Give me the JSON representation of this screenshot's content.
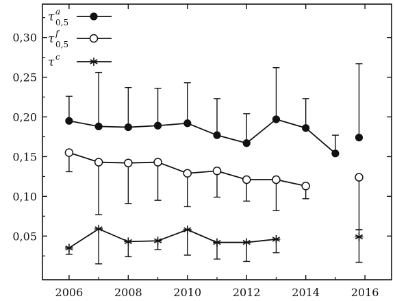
{
  "chart_data": {
    "type": "line",
    "title": "",
    "xlabel": "",
    "ylabel": "",
    "xlim": [
      2005.1,
      2016.9
    ],
    "ylim": [
      -0.005,
      0.342
    ],
    "x_ticks": [
      2006,
      2008,
      2010,
      2012,
      2014,
      2016
    ],
    "x_tick_labels": [
      "2006",
      "2008",
      "2010",
      "2012",
      "2014",
      "2016"
    ],
    "y_ticks": [
      0.05,
      0.1,
      0.15,
      0.2,
      0.25,
      0.3
    ],
    "y_tick_labels": [
      "0,05",
      "0,10",
      "0,15",
      "0,20",
      "0,25",
      "0,30"
    ],
    "grid": false,
    "legend_position": "top-left",
    "series": [
      {
        "name": "τ^a_0,5",
        "legend": {
          "base": "τ",
          "sup": "a",
          "sub": "0,5"
        },
        "marker": "filled-circle",
        "error_direction": "up",
        "segments": [
          [
            {
              "x": 2006,
              "y": 0.195,
              "err": 0.226
            },
            {
              "x": 2007,
              "y": 0.188,
              "err": 0.256
            },
            {
              "x": 2008,
              "y": 0.187,
              "err": 0.237
            },
            {
              "x": 2009,
              "y": 0.189,
              "err": 0.236
            },
            {
              "x": 2010,
              "y": 0.192,
              "err": 0.243
            },
            {
              "x": 2011,
              "y": 0.177,
              "err": 0.223
            },
            {
              "x": 2012,
              "y": 0.167,
              "err": 0.204
            },
            {
              "x": 2013,
              "y": 0.197,
              "err": 0.262
            },
            {
              "x": 2014,
              "y": 0.186,
              "err": 0.223
            },
            {
              "x": 2015,
              "y": 0.154,
              "err": 0.177
            }
          ],
          [
            {
              "x": 2015.8,
              "y": 0.174,
              "err": 0.267
            }
          ]
        ]
      },
      {
        "name": "τ^f_0,5",
        "legend": {
          "base": "τ",
          "sup": "f",
          "sub": "0,5"
        },
        "marker": "open-circle",
        "error_direction": "down",
        "segments": [
          [
            {
              "x": 2006,
              "y": 0.155,
              "err": 0.131
            },
            {
              "x": 2007,
              "y": 0.143,
              "err": 0.077
            },
            {
              "x": 2008,
              "y": 0.142,
              "err": 0.091
            },
            {
              "x": 2009,
              "y": 0.143,
              "err": 0.095
            },
            {
              "x": 2010,
              "y": 0.129,
              "err": 0.087
            },
            {
              "x": 2011,
              "y": 0.132,
              "err": 0.099
            },
            {
              "x": 2012,
              "y": 0.121,
              "err": 0.094
            },
            {
              "x": 2013,
              "y": 0.121,
              "err": 0.082
            },
            {
              "x": 2014,
              "y": 0.113,
              "err": 0.097
            }
          ],
          [
            {
              "x": 2015.8,
              "y": 0.124,
              "err": 0.058
            }
          ]
        ]
      },
      {
        "name": "τ^c",
        "legend": {
          "base": "τ",
          "sup": "c",
          "sub": ""
        },
        "marker": "asterisk",
        "error_direction": "both",
        "segments": [
          [
            {
              "x": 2006,
              "y": 0.035,
              "lo": 0.027,
              "hi": 0.035
            },
            {
              "x": 2007,
              "y": 0.059,
              "lo": 0.015,
              "hi": 0.059
            },
            {
              "x": 2008,
              "y": 0.043,
              "lo": 0.024,
              "hi": 0.043
            },
            {
              "x": 2009,
              "y": 0.044,
              "lo": 0.033,
              "hi": 0.044
            },
            {
              "x": 2010,
              "y": 0.058,
              "lo": 0.026,
              "hi": 0.058
            },
            {
              "x": 2011,
              "y": 0.042,
              "lo": 0.021,
              "hi": 0.042
            },
            {
              "x": 2012,
              "y": 0.042,
              "lo": 0.018,
              "hi": 0.042
            },
            {
              "x": 2013,
              "y": 0.046,
              "lo": 0.029,
              "hi": 0.046
            }
          ],
          [
            {
              "x": 2015.8,
              "y": 0.049,
              "lo": 0.017,
              "hi": 0.058
            }
          ]
        ]
      }
    ]
  }
}
